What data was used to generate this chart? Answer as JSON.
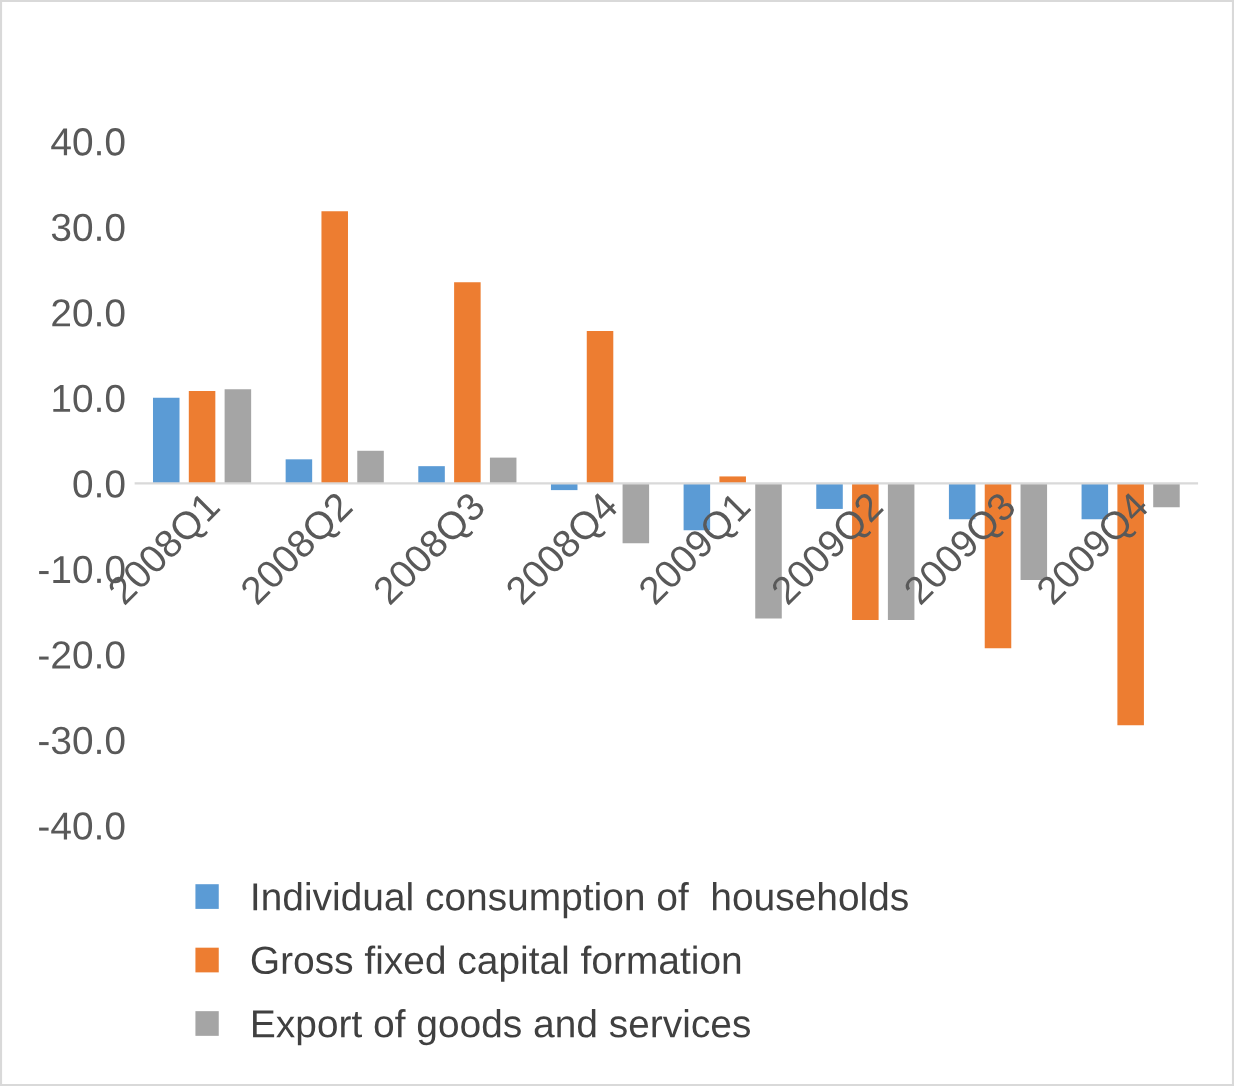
{
  "chart_data": {
    "type": "bar",
    "categories": [
      "2008Q1",
      "2008Q2",
      "2008Q3",
      "2008Q4",
      "2009Q1",
      "2009Q2",
      "2009Q3",
      "2009Q4"
    ],
    "series": [
      {
        "name": "Individual consumption of  households",
        "color": "#5b9bd5",
        "values": [
          10.0,
          2.8,
          2.0,
          -0.8,
          -5.5,
          -3.0,
          -4.2,
          -4.2
        ]
      },
      {
        "name": "Gross fixed capital formation",
        "color": "#ed7d31",
        "values": [
          10.8,
          31.8,
          23.5,
          17.8,
          0.8,
          -16.0,
          -19.3,
          -28.3
        ]
      },
      {
        "name": "Export of goods and services",
        "color": "#a5a5a5",
        "values": [
          11.0,
          3.8,
          3.0,
          -7.0,
          -15.8,
          -16.0,
          -11.3,
          -2.8
        ]
      }
    ],
    "ylim": [
      -40,
      40
    ],
    "yticks": [
      {
        "value": -40,
        "label": "-40.0"
      },
      {
        "value": -30,
        "label": "-30.0"
      },
      {
        "value": -20,
        "label": "-20.0"
      },
      {
        "value": -10,
        "label": "-10.0"
      },
      {
        "value": 0,
        "label": "0.0"
      },
      {
        "value": 10,
        "label": "10.0"
      },
      {
        "value": 20,
        "label": "20.0"
      },
      {
        "value": 30,
        "label": "30.0"
      },
      {
        "value": 40,
        "label": "40.0"
      }
    ],
    "grid": false,
    "legend": "bottom"
  }
}
